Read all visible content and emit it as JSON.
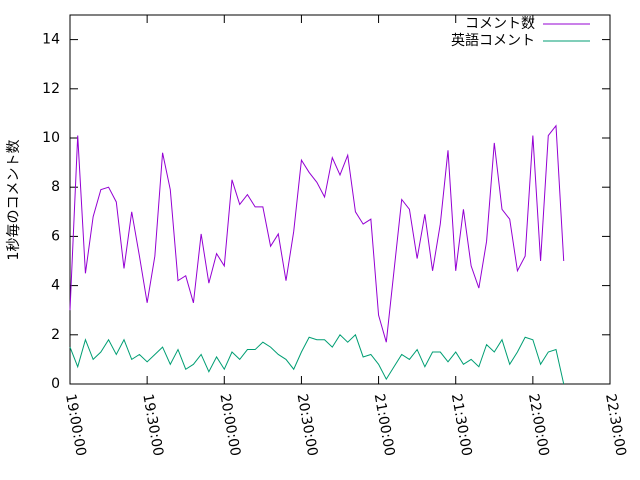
{
  "chart_data": {
    "type": "line",
    "ylabel": "1秒毎のコメント数",
    "x": [
      "19:00:00",
      "19:03:00",
      "19:06:00",
      "19:09:00",
      "19:12:00",
      "19:15:00",
      "19:18:00",
      "19:21:00",
      "19:24:00",
      "19:27:00",
      "19:30:00",
      "19:33:00",
      "19:36:00",
      "19:39:00",
      "19:42:00",
      "19:45:00",
      "19:48:00",
      "19:51:00",
      "19:54:00",
      "19:57:00",
      "20:00:00",
      "20:03:00",
      "20:06:00",
      "20:09:00",
      "20:12:00",
      "20:15:00",
      "20:18:00",
      "20:21:00",
      "20:24:00",
      "20:27:00",
      "20:30:00",
      "20:33:00",
      "20:36:00",
      "20:39:00",
      "20:42:00",
      "20:45:00",
      "20:48:00",
      "20:51:00",
      "20:54:00",
      "20:57:00",
      "21:00:00",
      "21:03:00",
      "21:06:00",
      "21:09:00",
      "21:12:00",
      "21:15:00",
      "21:18:00",
      "21:21:00",
      "21:24:00",
      "21:27:00",
      "21:30:00",
      "21:33:00",
      "21:36:00",
      "21:39:00",
      "21:42:00",
      "21:45:00",
      "21:48:00",
      "21:51:00",
      "21:54:00",
      "21:57:00",
      "22:00:00",
      "22:03:00",
      "22:06:00",
      "22:09:00",
      "22:12:00"
    ],
    "series": [
      {
        "name": "コメント数",
        "color": "#9400d3",
        "values": [
          3.0,
          10.1,
          4.5,
          6.8,
          7.9,
          8.0,
          7.4,
          4.7,
          7.0,
          5.2,
          3.3,
          5.2,
          9.4,
          7.9,
          4.2,
          4.4,
          3.3,
          6.1,
          4.1,
          5.3,
          4.8,
          8.3,
          7.3,
          7.7,
          7.2,
          7.2,
          5.6,
          6.1,
          4.2,
          6.2,
          9.1,
          8.6,
          8.2,
          7.6,
          9.2,
          8.5,
          9.3,
          7.0,
          6.5,
          6.7,
          2.8,
          1.7,
          4.6,
          7.5,
          7.1,
          5.1,
          6.9,
          4.6,
          6.5,
          9.5,
          4.6,
          7.1,
          4.8,
          3.9,
          5.8,
          9.8,
          7.1,
          6.7,
          4.6,
          5.2,
          10.1,
          5.0,
          10.1,
          10.5,
          5.0
        ]
      },
      {
        "name": "英語コメント",
        "color": "#009e73",
        "values": [
          1.5,
          0.7,
          1.8,
          1.0,
          1.3,
          1.8,
          1.2,
          1.8,
          1.0,
          1.2,
          0.9,
          1.2,
          1.5,
          0.8,
          1.4,
          0.6,
          0.8,
          1.2,
          0.5,
          1.1,
          0.6,
          1.3,
          1.0,
          1.4,
          1.4,
          1.7,
          1.5,
          1.2,
          1.0,
          0.6,
          1.3,
          1.9,
          1.8,
          1.8,
          1.5,
          2.0,
          1.7,
          2.0,
          1.1,
          1.2,
          0.8,
          0.2,
          0.7,
          1.2,
          1.0,
          1.4,
          0.7,
          1.3,
          1.3,
          0.9,
          1.3,
          0.8,
          1.0,
          0.7,
          1.6,
          1.3,
          1.8,
          0.8,
          1.3,
          1.9,
          1.8,
          0.8,
          1.3,
          1.4,
          0.0
        ]
      }
    ],
    "xlim": [
      "19:00:00",
      "22:30:00"
    ],
    "xticks": [
      "19:00:00",
      "19:30:00",
      "20:00:00",
      "20:30:00",
      "21:00:00",
      "21:30:00",
      "22:00:00",
      "22:30:00"
    ],
    "ylim": [
      0,
      15
    ],
    "yticks": [
      0,
      2,
      4,
      6,
      8,
      10,
      12,
      14
    ],
    "legend": "top-right"
  }
}
